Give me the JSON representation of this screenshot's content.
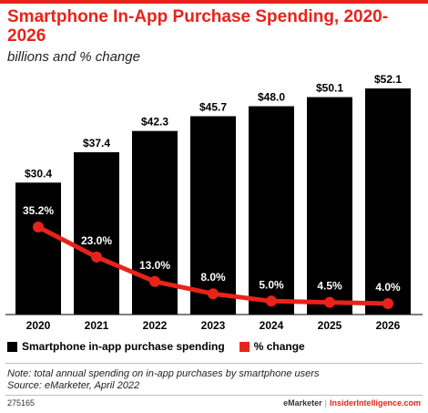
{
  "header": {
    "title": "Smartphone In-App Purchase Spending, 2020-2026",
    "subtitle": "billions and % change"
  },
  "chart_data": {
    "type": "bar",
    "title": "Smartphone In-App Purchase Spending, 2020-2026",
    "subtitle": "billions and % change",
    "categories": [
      "2020",
      "2021",
      "2022",
      "2023",
      "2024",
      "2025",
      "2026"
    ],
    "series": [
      {
        "name": "Smartphone in-app purchase spending",
        "type": "bar",
        "color": "#000000",
        "values": [
          30.4,
          37.4,
          42.3,
          45.7,
          48.0,
          50.1,
          52.1
        ],
        "labels": [
          "$30.4",
          "$37.4",
          "$42.3",
          "$45.7",
          "$48.0",
          "$50.1",
          "$52.1"
        ]
      },
      {
        "name": "% change",
        "type": "line",
        "color": "#e8231a",
        "values": [
          35.2,
          23.0,
          13.0,
          8.0,
          5.0,
          4.5,
          4.0
        ],
        "labels": [
          "35.2%",
          "23.0%",
          "13.0%",
          "8.0%",
          "5.0%",
          "4.5%",
          "4.0%"
        ]
      }
    ],
    "legend": "bottom-left",
    "grid": false
  },
  "legend": {
    "items": [
      {
        "label": "Smartphone in-app purchase spending",
        "color": "#000000"
      },
      {
        "label": "% change",
        "color": "#e8231a"
      }
    ]
  },
  "notes": {
    "note": "Note: total annual spending on in-app purchases by smartphone users",
    "source": "Source: eMarketer, April 2022"
  },
  "footer": {
    "chart_id": "275165",
    "brand": "eMarketer",
    "separator": "|",
    "brand_site": "InsiderIntelligence.com"
  },
  "colors": {
    "accent": "#e8231a",
    "bar": "#000000"
  }
}
